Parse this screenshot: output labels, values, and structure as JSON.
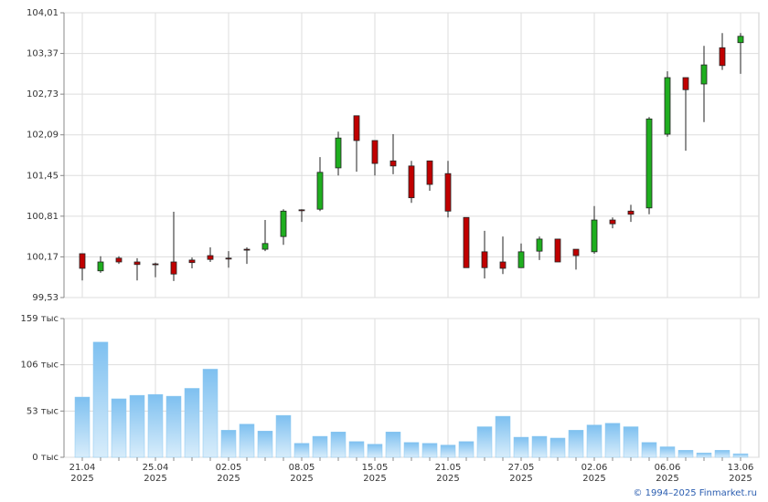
{
  "chart_data": [
    {
      "type": "candlestick",
      "open": [
        100.22,
        99.95,
        100.15,
        100.09,
        100.06,
        100.09,
        100.12,
        100.19,
        100.15,
        100.29,
        100.29,
        100.49,
        100.91,
        100.92,
        101.57,
        102.39,
        102.0,
        101.68,
        101.6,
        101.68,
        101.48,
        100.79,
        100.25,
        100.09,
        100.0,
        100.26,
        100.45,
        100.29,
        100.25,
        100.75,
        100.89,
        100.94,
        102.1,
        102.99,
        102.89,
        103.46,
        103.54
      ],
      "high": [
        100.22,
        100.18,
        100.18,
        100.15,
        100.08,
        100.88,
        100.16,
        100.32,
        100.26,
        100.32,
        100.75,
        100.92,
        100.92,
        101.74,
        102.14,
        102.39,
        102.0,
        102.1,
        101.68,
        101.68,
        101.68,
        100.79,
        100.58,
        100.49,
        100.38,
        100.49,
        100.45,
        100.29,
        100.97,
        100.79,
        100.99,
        102.37,
        103.09,
        102.99,
        103.49,
        103.69,
        103.69
      ],
      "low": [
        99.8,
        99.92,
        100.06,
        99.8,
        99.85,
        99.79,
        99.99,
        100.09,
        100.0,
        100.06,
        100.26,
        100.36,
        100.72,
        100.89,
        101.45,
        101.51,
        101.45,
        101.47,
        101.02,
        101.21,
        100.79,
        100.0,
        99.83,
        99.9,
        100.0,
        100.12,
        100.09,
        99.97,
        100.22,
        100.62,
        100.72,
        100.84,
        102.06,
        101.84,
        102.29,
        103.11,
        103.05
      ],
      "close": [
        99.99,
        100.09,
        100.09,
        100.05,
        100.05,
        99.9,
        100.08,
        100.13,
        100.14,
        100.28,
        100.38,
        100.89,
        100.9,
        101.5,
        102.04,
        102.0,
        101.64,
        101.6,
        101.1,
        101.31,
        100.89,
        100.0,
        100.0,
        99.99,
        100.25,
        100.45,
        100.09,
        100.19,
        100.75,
        100.69,
        100.84,
        102.34,
        102.99,
        102.8,
        103.19,
        103.18,
        103.64
      ],
      "up_color": "#1fae1f",
      "down_color": "#c00000",
      "ylim": [
        99.53,
        104.01
      ],
      "yticks": [
        {
          "value": 99.53,
          "label": "99,53"
        },
        {
          "value": 100.17,
          "label": "100,17"
        },
        {
          "value": 100.81,
          "label": "100,81"
        },
        {
          "value": 101.45,
          "label": "101,45"
        },
        {
          "value": 102.09,
          "label": "102,09"
        },
        {
          "value": 102.73,
          "label": "102,73"
        },
        {
          "value": 103.37,
          "label": "103,37"
        },
        {
          "value": 104.01,
          "label": "104,01"
        }
      ],
      "grid": true
    },
    {
      "type": "bar",
      "categories": [
        "21.04\n2025",
        null,
        null,
        null,
        "25.04\n2025",
        null,
        null,
        null,
        "02.05\n2025",
        null,
        null,
        null,
        "08.05\n2025",
        null,
        null,
        null,
        "15.05\n2025",
        null,
        null,
        null,
        "21.05\n2025",
        null,
        null,
        null,
        "27.05\n2025",
        null,
        null,
        null,
        "02.06\n2025",
        null,
        null,
        null,
        "06.06\n2025",
        null,
        null,
        null,
        "13.06\n2025"
      ],
      "values": [
        69,
        132,
        67,
        71,
        72,
        70,
        79,
        101,
        31,
        38,
        30,
        48,
        16,
        24,
        29,
        18,
        15,
        29,
        17,
        16,
        14,
        18,
        35,
        47,
        23,
        24,
        22,
        31,
        37,
        39,
        35,
        17,
        12,
        8,
        5,
        8,
        4
      ],
      "color": "#8cc8f0",
      "ylim": [
        0,
        159
      ],
      "yticks": [
        {
          "value": 0,
          "label": "0 тыс"
        },
        {
          "value": 53,
          "label": "53 тыс"
        },
        {
          "value": 106,
          "label": "106 тыс"
        },
        {
          "value": 159,
          "label": "159 тыс"
        }
      ],
      "grid": true
    }
  ],
  "footer": "© 1994–2025 Finmarket.ru"
}
